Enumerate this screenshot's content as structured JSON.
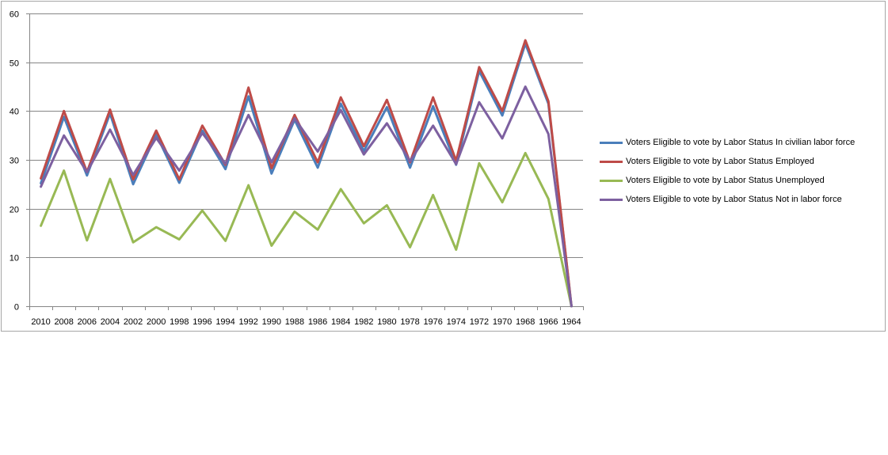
{
  "chart_data": {
    "type": "line",
    "categories": [
      "2010",
      "2008",
      "2006",
      "2004",
      "2002",
      "2000",
      "1998",
      "1996",
      "1994",
      "1992",
      "1990",
      "1988",
      "1986",
      "1984",
      "1982",
      "1980",
      "1978",
      "1976",
      "1974",
      "1972",
      "1970",
      "1968",
      "1966",
      "1964"
    ],
    "ylim": [
      0,
      60
    ],
    "yticks": [
      0,
      10,
      20,
      30,
      40,
      50,
      60
    ],
    "grid": true,
    "legend_position": "right",
    "title": "",
    "xlabel": "",
    "ylabel": "",
    "series": [
      {
        "name": "Voters Eligible to vote by Labor Status In civilian labor force",
        "color": "#4a7ebb",
        "values": [
          25.2,
          38.8,
          26.8,
          39.5,
          25.0,
          35.2,
          25.3,
          36.0,
          28.1,
          43.0,
          27.2,
          38.2,
          28.4,
          41.5,
          31.8,
          40.8,
          28.4,
          41.0,
          29.0,
          48.2,
          39.1,
          53.8,
          41.5,
          0
        ]
      },
      {
        "name": "Voters Eligible to vote by Labor Status Employed",
        "color": "#be4b48",
        "values": [
          26.2,
          40.0,
          27.5,
          40.3,
          26.0,
          36.0,
          26.0,
          37.0,
          29.0,
          44.8,
          28.3,
          39.2,
          29.5,
          42.8,
          32.8,
          42.3,
          29.5,
          42.8,
          29.8,
          49.0,
          40.0,
          54.5,
          42.0,
          0
        ]
      },
      {
        "name": "Voters Eligible to vote by Labor Status Unemployed",
        "color": "#98b954",
        "values": [
          16.5,
          27.8,
          13.5,
          26.1,
          13.1,
          16.2,
          13.7,
          19.6,
          13.4,
          24.8,
          12.4,
          19.4,
          15.7,
          24.0,
          17.0,
          20.7,
          12.1,
          22.8,
          11.6,
          29.3,
          21.3,
          31.4,
          22.0,
          0
        ]
      },
      {
        "name": "Voters Eligible to vote by Labor Status Not in labor force",
        "color": "#7d60a0",
        "values": [
          24.5,
          35.0,
          27.5,
          36.2,
          26.9,
          34.5,
          27.8,
          35.5,
          29.2,
          39.2,
          29.5,
          38.5,
          31.7,
          40.2,
          31.1,
          37.5,
          29.7,
          37.0,
          29.1,
          41.8,
          34.4,
          45.0,
          35.3,
          0
        ]
      }
    ]
  }
}
